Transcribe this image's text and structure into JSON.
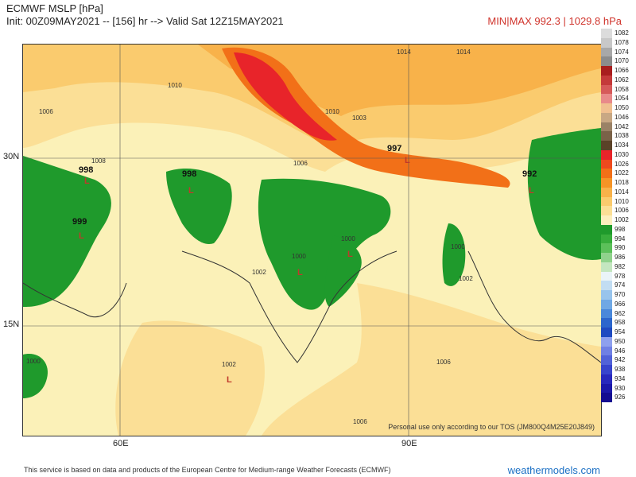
{
  "header": {
    "title": "ECMWF MSLP [hPa]",
    "init_line": "Init: 00Z09MAY2021 -- [156] hr --> Valid Sat 12Z15MAY2021",
    "minmax": "MIN|MAX 992.3 | 1029.8 hPa"
  },
  "axes": {
    "lat": [
      "30N",
      "15N"
    ],
    "lon": [
      "60E",
      "90E"
    ]
  },
  "map_labels": {
    "centers": [
      "998",
      "998",
      "999",
      "997",
      "992",
      "1000",
      "1000",
      "1000",
      "1002",
      "1000",
      "1003"
    ],
    "low_marker": "L",
    "isobar_tags": [
      "1014",
      "1010",
      "1006",
      "1002",
      "1006",
      "1008",
      "1010",
      "1014",
      "1006",
      "1002",
      "1006"
    ]
  },
  "notice": "Personal use only according to our TOS (JM800Q4M25E20J849)",
  "footer": "This service is based on data and products of the European Centre for Medium-range Weather Forecasts (ECMWF)",
  "site": "weathermodels.com",
  "legend": [
    {
      "v": "1082",
      "c": "#dcdcdc"
    },
    {
      "v": "1078",
      "c": "#c8c8c8"
    },
    {
      "v": "1074",
      "c": "#a8a8a8"
    },
    {
      "v": "1070",
      "c": "#8c8c8c"
    },
    {
      "v": "1066",
      "c": "#a81e1e"
    },
    {
      "v": "1062",
      "c": "#c43a3a"
    },
    {
      "v": "1058",
      "c": "#d65a5a"
    },
    {
      "v": "1054",
      "c": "#e88a8a"
    },
    {
      "v": "1050",
      "c": "#f0c090"
    },
    {
      "v": "1046",
      "c": "#c8a884"
    },
    {
      "v": "1042",
      "c": "#9a8266"
    },
    {
      "v": "1038",
      "c": "#7a6248"
    },
    {
      "v": "1034",
      "c": "#5a4228"
    },
    {
      "v": "1030",
      "c": "#e8242a"
    },
    {
      "v": "1026",
      "c": "#ee4a1e"
    },
    {
      "v": "1022",
      "c": "#f27018"
    },
    {
      "v": "1018",
      "c": "#f59426"
    },
    {
      "v": "1014",
      "c": "#f8b24a"
    },
    {
      "v": "1010",
      "c": "#facb6e"
    },
    {
      "v": "1006",
      "c": "#fbdf96"
    },
    {
      "v": "1002",
      "c": "#fcefbe"
    },
    {
      "v": "998",
      "c": "#1f9a2c"
    },
    {
      "v": "994",
      "c": "#38ad3c"
    },
    {
      "v": "990",
      "c": "#5cc05a"
    },
    {
      "v": "986",
      "c": "#90d28c"
    },
    {
      "v": "982",
      "c": "#c4e6c0"
    },
    {
      "v": "978",
      "c": "#eaf4f8"
    },
    {
      "v": "974",
      "c": "#c2ddf2"
    },
    {
      "v": "970",
      "c": "#98c4ec"
    },
    {
      "v": "966",
      "c": "#70a8e4"
    },
    {
      "v": "962",
      "c": "#4a88da"
    },
    {
      "v": "958",
      "c": "#2c66cc"
    },
    {
      "v": "954",
      "c": "#1f4ac0"
    },
    {
      "v": "950",
      "c": "#8ea0ee"
    },
    {
      "v": "946",
      "c": "#7080e4"
    },
    {
      "v": "942",
      "c": "#5262d8"
    },
    {
      "v": "938",
      "c": "#3844cc"
    },
    {
      "v": "934",
      "c": "#2828bc"
    },
    {
      "v": "930",
      "c": "#1c18a8"
    },
    {
      "v": "926",
      "c": "#140c90"
    }
  ]
}
